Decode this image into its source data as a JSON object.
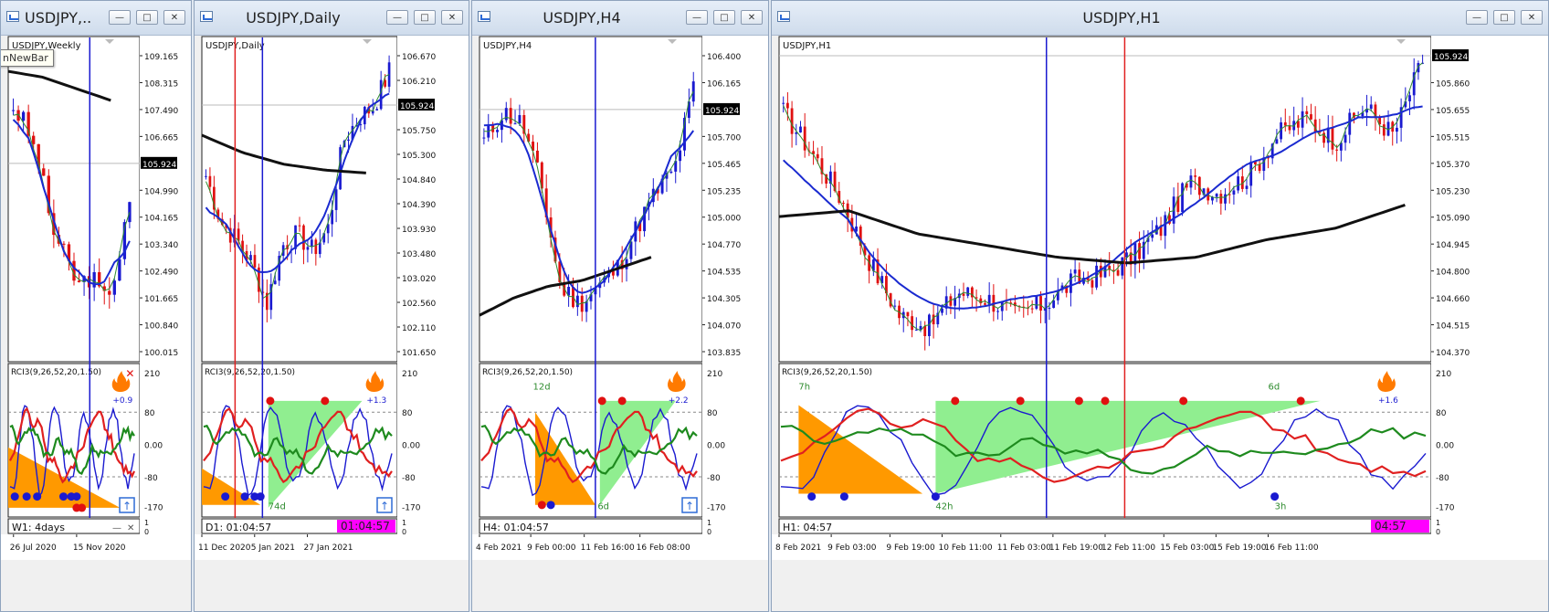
{
  "windows": [
    {
      "id": "w1",
      "title": "USDJPY,...",
      "inner_label": "USDJPY,Weekly",
      "tooltip": "nNewBar",
      "price_ticks": [
        "109.165",
        "108.315",
        "107.490",
        "106.665",
        "105.924",
        "104.990",
        "104.165",
        "103.340",
        "102.490",
        "101.665",
        "100.840",
        "100.015"
      ],
      "current_price": "105.924",
      "indicator_label": "RCI3(9,26,52,20,1.50)",
      "indicator_value": "+0.9",
      "rci_ticks": [
        "210",
        "80",
        "0.00",
        "-80",
        "-170"
      ],
      "status_label": "W1: 4days",
      "status_ticks": [
        "1",
        "0"
      ],
      "date_ticks": [
        "26 Jul 2020",
        "15 Nov 2020"
      ]
    },
    {
      "id": "w2",
      "title": "USDJPY,Daily",
      "inner_label": "USDJPY,Daily",
      "price_ticks": [
        "106.670",
        "106.210",
        "105.924",
        "105.750",
        "105.300",
        "104.840",
        "104.390",
        "103.930",
        "103.480",
        "103.020",
        "102.560",
        "102.110",
        "101.650"
      ],
      "current_price": "105.924",
      "indicator_label": "RCI3(9,26,52,20,1.50)",
      "indicator_value": "+1.3",
      "rci_ticks": [
        "210",
        "80",
        "0.00",
        "-80",
        "-170"
      ],
      "annotation": "74d",
      "status_label": "D1: 01:04:57",
      "status_badge": "01:04:57",
      "status_ticks": [
        "1",
        "0"
      ],
      "date_ticks": [
        "11 Dec 2020",
        "5 Jan 2021",
        "27 Jan 2021"
      ]
    },
    {
      "id": "w3",
      "title": "USDJPY,H4",
      "inner_label": "USDJPY,H4",
      "price_ticks": [
        "106.400",
        "106.165",
        "105.924",
        "105.700",
        "105.465",
        "105.235",
        "105.000",
        "104.770",
        "104.535",
        "104.305",
        "104.070",
        "103.835"
      ],
      "current_price": "105.924",
      "indicator_label": "RCI3(9,26,52,20,1.50)",
      "indicator_value": "+2.2",
      "rci_ticks": [
        "210",
        "80",
        "0.00",
        "-80",
        "-170"
      ],
      "annotations": [
        "12d",
        "6d"
      ],
      "status_label": "H4: 01:04:57",
      "status_ticks": [
        "1",
        "0"
      ],
      "date_ticks": [
        "4 Feb 2021",
        "9 Feb 00:00",
        "11 Feb 16:00",
        "16 Feb 08:00"
      ]
    },
    {
      "id": "w4",
      "title": "USDJPY,H1",
      "inner_label": "USDJPY,H1",
      "price_ticks": [
        "105.924",
        "105.860",
        "105.655",
        "105.515",
        "105.370",
        "105.230",
        "105.090",
        "104.945",
        "104.800",
        "104.660",
        "104.515",
        "104.370"
      ],
      "current_price": "105.924",
      "indicator_label": "RCI3(9,26,52,20,1.50)",
      "indicator_value": "+1.6",
      "rci_ticks": [
        "210",
        "80",
        "0.00",
        "-80",
        "-170"
      ],
      "annotations": [
        "7h",
        "6d",
        "42h",
        "3h"
      ],
      "status_label": "H1: 04:57",
      "status_badge": "04:57",
      "status_ticks": [
        "1",
        "0"
      ],
      "date_ticks": [
        "8 Feb 2021",
        "9 Feb 03:00",
        "9 Feb 19:00",
        "10 Feb 11:00",
        "11 Feb 03:00",
        "11 Feb 19:00",
        "12 Feb 11:00",
        "15 Feb 03:00",
        "15 Feb 19:00",
        "16 Feb 11:00"
      ]
    }
  ],
  "window_buttons": [
    "minimize",
    "maximize",
    "close"
  ],
  "colors": {
    "bull": "#1a1ad0",
    "bear": "#e01010",
    "ma_blue": "#1a2ad0",
    "ma_black": "#111111",
    "ma_green": "#2e8b2e",
    "rci_green": "#1e8a1e",
    "rci_red": "#e02020",
    "rci_blue": "#1a1ad0",
    "orange_fill": "#ff9900",
    "green_fill": "#90ee90",
    "badge_magenta": "#ff00ff"
  },
  "icons": [
    "chart-window-icon",
    "fire-icon",
    "arrow-up-icon",
    "close-x-icon"
  ]
}
